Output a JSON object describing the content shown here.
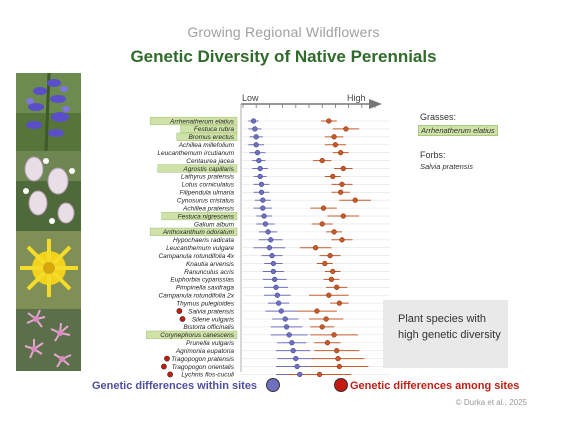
{
  "supertitle": "Growing Regional Wildflowers",
  "title": "Genetic Diversity of Native Perennials",
  "legend": {
    "grasses_title": "Grasses:",
    "grasses_example": "Arrhenatherum elatius",
    "forbs_title": "Forbs:",
    "forbs_example": "Salvia pratensis",
    "within_label": "Genetic differences within sites",
    "among_label": "Genetic differences among sites"
  },
  "highlight_text": "Plant species with high genetic diversity",
  "citation": "© Durka et al., 2025",
  "colors": {
    "within": "#6f6fc0",
    "among": "#c85a2a",
    "among_legend": "#c41a10",
    "grass_highlight": "#cfe3a8",
    "title_green": "#2f6b2a"
  },
  "photos": [
    "salvia-pratensis-photo",
    "silene-vulgaris-photo",
    "tragopogon-pratensis-photo",
    "lychnis-flos-cuculi-photo"
  ],
  "chart_data": {
    "type": "scatter",
    "axis": {
      "low_label": "Low",
      "high_label": "High",
      "xlim": [
        0,
        10
      ]
    },
    "series": [
      {
        "name": "Genetic differences within sites",
        "color": "#6f6fc0"
      },
      {
        "name": "Genetic differences among sites",
        "color": "#c85a2a"
      }
    ],
    "species": [
      {
        "name": "Arrhenatherum elatius",
        "grass": true,
        "dot": false,
        "within": 0.8,
        "within_err": 0.4,
        "among": 6.5,
        "among_err": 0.6
      },
      {
        "name": "Festuca rubra",
        "grass": true,
        "dot": false,
        "within": 0.9,
        "within_err": 0.5,
        "among": 7.8,
        "among_err": 1.0
      },
      {
        "name": "Bromus erectus",
        "grass": true,
        "dot": false,
        "within": 1.0,
        "within_err": 0.5,
        "among": 6.9,
        "among_err": 0.7
      },
      {
        "name": "Achillea millefolium",
        "grass": false,
        "dot": false,
        "within": 1.0,
        "within_err": 0.6,
        "among": 7.0,
        "among_err": 0.8
      },
      {
        "name": "Leucanthemum ircutianum",
        "grass": false,
        "dot": false,
        "within": 1.1,
        "within_err": 0.6,
        "among": 7.4,
        "among_err": 0.6
      },
      {
        "name": "Centaurea jacea",
        "grass": false,
        "dot": false,
        "within": 1.2,
        "within_err": 0.5,
        "among": 6.0,
        "among_err": 0.7
      },
      {
        "name": "Agrostis capillaris",
        "grass": true,
        "dot": false,
        "within": 1.3,
        "within_err": 0.6,
        "among": 7.6,
        "among_err": 0.7
      },
      {
        "name": "Lathyrus pratensis",
        "grass": false,
        "dot": false,
        "within": 1.3,
        "within_err": 0.5,
        "among": 6.8,
        "among_err": 0.6
      },
      {
        "name": "Lotus corniculatus",
        "grass": false,
        "dot": false,
        "within": 1.4,
        "within_err": 0.6,
        "among": 7.5,
        "among_err": 0.8
      },
      {
        "name": "Filipendula ulmaria",
        "grass": false,
        "dot": false,
        "within": 1.4,
        "within_err": 0.6,
        "among": 7.4,
        "among_err": 0.7
      },
      {
        "name": "Cynosurus cristatus",
        "grass": false,
        "dot": false,
        "within": 1.5,
        "within_err": 0.6,
        "among": 8.5,
        "among_err": 1.2
      },
      {
        "name": "Achillea pratensis",
        "grass": false,
        "dot": false,
        "within": 1.5,
        "within_err": 0.7,
        "among": 6.1,
        "among_err": 1.0
      },
      {
        "name": "Festuca nigrescens",
        "grass": true,
        "dot": false,
        "within": 1.6,
        "within_err": 0.6,
        "among": 7.6,
        "among_err": 1.2
      },
      {
        "name": "Galium album",
        "grass": false,
        "dot": false,
        "within": 1.7,
        "within_err": 0.7,
        "among": 6.0,
        "among_err": 0.8
      },
      {
        "name": "Anthoxanthum odoratum",
        "grass": true,
        "dot": false,
        "within": 1.9,
        "within_err": 0.7,
        "among": 6.9,
        "among_err": 0.6
      },
      {
        "name": "Hypochaeris radicata",
        "grass": false,
        "dot": false,
        "within": 2.1,
        "within_err": 0.9,
        "among": 7.5,
        "among_err": 0.8
      },
      {
        "name": "Leucanthemum vulgare",
        "grass": false,
        "dot": false,
        "within": 2.0,
        "within_err": 1.2,
        "among": 5.5,
        "among_err": 1.2
      },
      {
        "name": "Campanula rotundifolia 4x",
        "grass": false,
        "dot": false,
        "within": 2.2,
        "within_err": 0.8,
        "among": 6.6,
        "among_err": 0.8
      },
      {
        "name": "Knautia arvensis",
        "grass": false,
        "dot": false,
        "within": 2.3,
        "within_err": 0.7,
        "among": 6.2,
        "among_err": 0.6
      },
      {
        "name": "Ranunculus acris",
        "grass": false,
        "dot": false,
        "within": 2.3,
        "within_err": 0.8,
        "among": 6.8,
        "among_err": 0.6
      },
      {
        "name": "Euphorbia cyparissias",
        "grass": false,
        "dot": false,
        "within": 2.4,
        "within_err": 0.9,
        "among": 6.7,
        "among_err": 0.6
      },
      {
        "name": "Pimpinella saxifraga",
        "grass": false,
        "dot": false,
        "within": 2.5,
        "within_err": 0.9,
        "among": 7.1,
        "among_err": 0.8
      },
      {
        "name": "Campanula rotundifolia 2x",
        "grass": false,
        "dot": false,
        "within": 2.6,
        "within_err": 1.0,
        "among": 6.5,
        "among_err": 1.5
      },
      {
        "name": "Thymus pulegioides",
        "grass": false,
        "dot": false,
        "within": 2.7,
        "within_err": 0.8,
        "among": 7.3,
        "among_err": 0.7
      },
      {
        "name": "Salvia pratensis",
        "grass": false,
        "dot": true,
        "within": 2.9,
        "within_err": 1.2,
        "among": 5.6,
        "among_err": 1.5
      },
      {
        "name": "Silene vulgaris",
        "grass": false,
        "dot": true,
        "within": 3.2,
        "within_err": 1.0,
        "among": 6.3,
        "among_err": 1.3
      },
      {
        "name": "Bistorta officinalis",
        "grass": false,
        "dot": false,
        "within": 3.3,
        "within_err": 1.2,
        "among": 6.0,
        "among_err": 0.9
      },
      {
        "name": "Corynephorus canescens",
        "grass": true,
        "dot": false,
        "within": 3.5,
        "within_err": 1.4,
        "among": 6.9,
        "among_err": 1.8
      },
      {
        "name": "Prunella vulgaris",
        "grass": false,
        "dot": false,
        "within": 3.7,
        "within_err": 1.1,
        "among": 6.4,
        "among_err": 1.0
      },
      {
        "name": "Agrimonia eupatoria",
        "grass": false,
        "dot": false,
        "within": 3.8,
        "within_err": 1.3,
        "among": 7.1,
        "among_err": 1.7
      },
      {
        "name": "Tragopogon pratensis",
        "grass": false,
        "dot": true,
        "within": 4.0,
        "within_err": 1.4,
        "among": 7.2,
        "among_err": 2.0
      },
      {
        "name": "Tragopogon orientalis",
        "grass": false,
        "dot": true,
        "within": 4.1,
        "within_err": 1.6,
        "among": 7.3,
        "among_err": 2.2
      },
      {
        "name": "Lychnis flos-cuculi",
        "grass": false,
        "dot": true,
        "within": 4.3,
        "within_err": 1.8,
        "among": 5.8,
        "among_err": 2.4
      }
    ]
  }
}
